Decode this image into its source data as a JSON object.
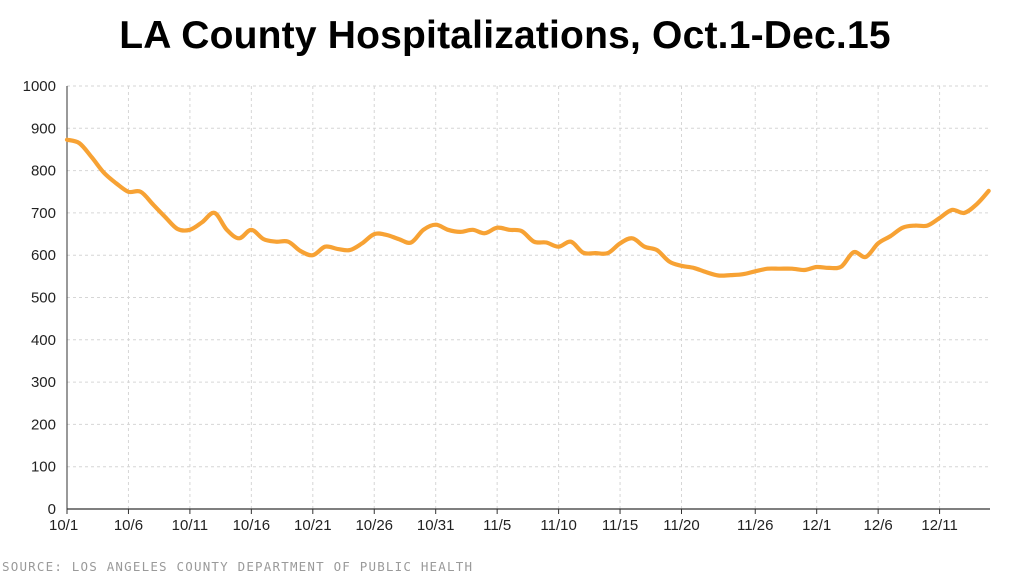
{
  "title": "LA County Hospitalizations, Oct.1-Dec.15",
  "source": "SOURCE: LOS ANGELES COUNTY DEPARTMENT OF PUBLIC HEALTH",
  "colors": {
    "line": "#f7a234",
    "grid": "#d6d6d6",
    "axis": "#333333"
  },
  "chart_data": {
    "type": "line",
    "title": "LA County Hospitalizations, Oct.1-Dec.15",
    "xlabel": "",
    "ylabel": "",
    "ylim": [
      0,
      1000
    ],
    "yticks": [
      0,
      100,
      200,
      300,
      400,
      500,
      600,
      700,
      800,
      900,
      1000
    ],
    "xticks": [
      "10/1",
      "10/6",
      "10/11",
      "10/16",
      "10/21",
      "10/26",
      "10/31",
      "11/5",
      "11/10",
      "11/15",
      "11/20",
      "11/26",
      "12/1",
      "12/6",
      "12/11"
    ],
    "grid": true,
    "series": [
      {
        "x": [
          "10/1",
          "10/2",
          "10/3",
          "10/4",
          "10/5",
          "10/6",
          "10/7",
          "10/8",
          "10/9",
          "10/10",
          "10/11",
          "10/12",
          "10/13",
          "10/14",
          "10/15",
          "10/16",
          "10/17",
          "10/18",
          "10/19",
          "10/20",
          "10/21",
          "10/22",
          "10/23",
          "10/24",
          "10/25",
          "10/26",
          "10/27",
          "10/28",
          "10/29",
          "10/30",
          "10/31",
          "11/1",
          "11/2",
          "11/3",
          "11/4",
          "11/5",
          "11/6",
          "11/7",
          "11/8",
          "11/9",
          "11/10",
          "11/11",
          "11/12",
          "11/13",
          "11/14",
          "11/15",
          "11/16",
          "11/17",
          "11/18",
          "11/19",
          "11/20",
          "11/21",
          "11/22",
          "11/23",
          "11/24",
          "11/25",
          "11/26",
          "11/27",
          "11/28",
          "11/29",
          "11/30",
          "12/1",
          "12/2",
          "12/3",
          "12/4",
          "12/5",
          "12/6",
          "12/7",
          "12/8",
          "12/9",
          "12/10",
          "12/11",
          "12/12",
          "12/13",
          "12/14",
          "12/15"
        ],
        "values": [
          873,
          865,
          832,
          795,
          770,
          750,
          750,
          720,
          690,
          662,
          660,
          678,
          700,
          660,
          640,
          660,
          638,
          632,
          632,
          610,
          600,
          620,
          615,
          612,
          628,
          650,
          648,
          638,
          630,
          660,
          672,
          660,
          655,
          660,
          652,
          665,
          660,
          657,
          632,
          630,
          620,
          632,
          606,
          605,
          605,
          628,
          640,
          620,
          612,
          585,
          575,
          570,
          560,
          552,
          553,
          555,
          562,
          568,
          568,
          568,
          565,
          572,
          570,
          573,
          607,
          596,
          628,
          645,
          665,
          670,
          670,
          688,
          707,
          700,
          720,
          752
        ]
      }
    ]
  }
}
